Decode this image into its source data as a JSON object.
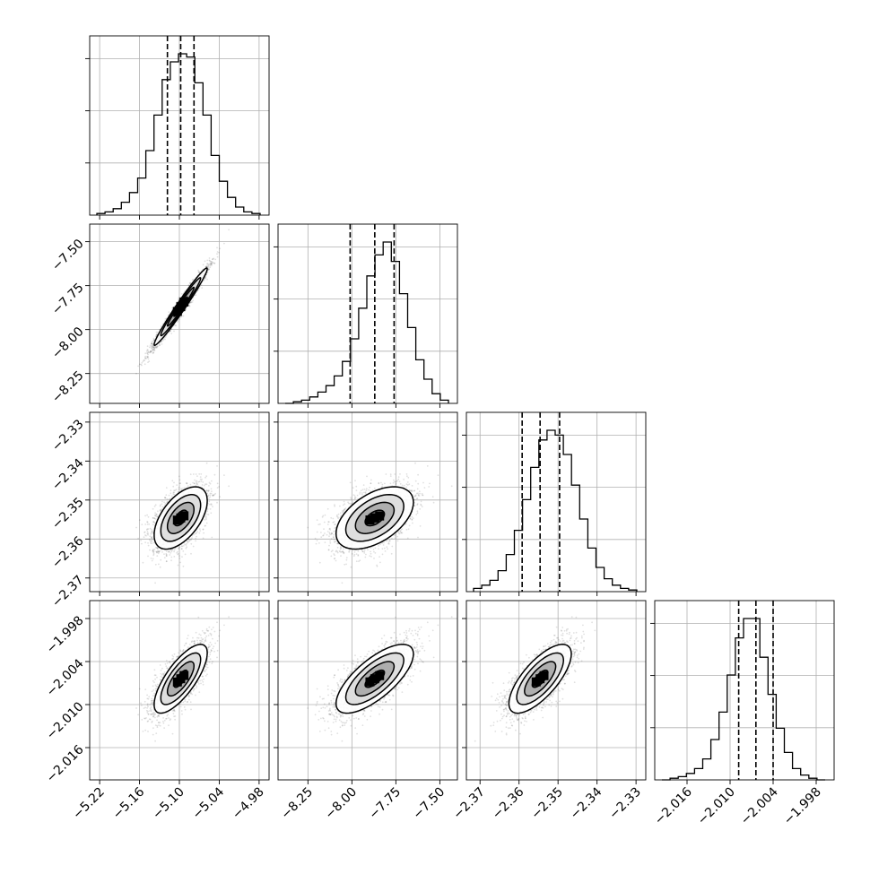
{
  "chart_data": {
    "type": "corner",
    "title": "",
    "grid": true,
    "parameters": [
      {
        "range": [
          -5.235,
          -4.965
        ],
        "ticks": [
          -5.22,
          -5.16,
          -5.1,
          -5.04,
          -4.98
        ],
        "tick_labels": [
          "−5.22",
          "−5.16",
          "−5.10",
          "−5.04",
          "−4.98"
        ],
        "quantiles": [
          -5.118,
          -5.098,
          -5.078
        ],
        "mean": -5.098,
        "sd": 0.02
      },
      {
        "range": [
          -8.42,
          -7.4
        ],
        "ticks": [
          -8.25,
          -8.0,
          -7.75,
          -7.5
        ],
        "tick_labels": [
          "−8.25",
          "−8.00",
          "−7.75",
          "−7.50"
        ],
        "quantiles": [
          -8.01,
          -7.87,
          -7.76
        ],
        "mean": -7.87,
        "sd": 0.11
      },
      {
        "range": [
          -2.3735,
          -2.3275
        ],
        "ticks": [
          -2.37,
          -2.36,
          -2.35,
          -2.34,
          -2.33
        ],
        "tick_labels": [
          "−2.37",
          "−2.36",
          "−2.35",
          "−2.34",
          "−2.33"
        ],
        "quantiles": [
          -2.3592,
          -2.3546,
          -2.3496
        ],
        "mean": -2.3546,
        "sd": 0.004
      },
      {
        "range": [
          -2.0205,
          -1.9955
        ],
        "ticks": [
          -2.016,
          -2.01,
          -2.004,
          -1.998
        ],
        "tick_labels": [
          "−2.016",
          "−2.010",
          "−2.004",
          "−1.998"
        ],
        "quantiles": [
          -2.0088,
          -2.0064,
          -2.004
        ],
        "mean": -2.0064,
        "sd": 0.0024
      }
    ],
    "histograms": [
      [
        1,
        2,
        4,
        8,
        14,
        23,
        40,
        62,
        84,
        95,
        100,
        98,
        82,
        62,
        37,
        21,
        11,
        5,
        2,
        1
      ],
      [
        0,
        1,
        2,
        4,
        7,
        11,
        17,
        26,
        40,
        59,
        79,
        92,
        100,
        88,
        68,
        47,
        27,
        15,
        6,
        2
      ],
      [
        2,
        4,
        7,
        13,
        23,
        38,
        57,
        77,
        94,
        100,
        97,
        85,
        66,
        45,
        27,
        15,
        8,
        4,
        2,
        1
      ],
      [
        0,
        1,
        2,
        4,
        7,
        13,
        25,
        42,
        65,
        88,
        100,
        100,
        76,
        53,
        32,
        17,
        7,
        3,
        1,
        0
      ]
    ],
    "correlations": [
      [
        1.0,
        0.98,
        0.55,
        0.75
      ],
      [
        0.98,
        1.0,
        0.5,
        0.72
      ],
      [
        0.55,
        0.5,
        1.0,
        0.72
      ],
      [
        0.75,
        0.72,
        0.72,
        1.0
      ]
    ],
    "contour_levels_sigma": [
      0.5,
      1.0,
      1.5,
      2.0
    ]
  }
}
